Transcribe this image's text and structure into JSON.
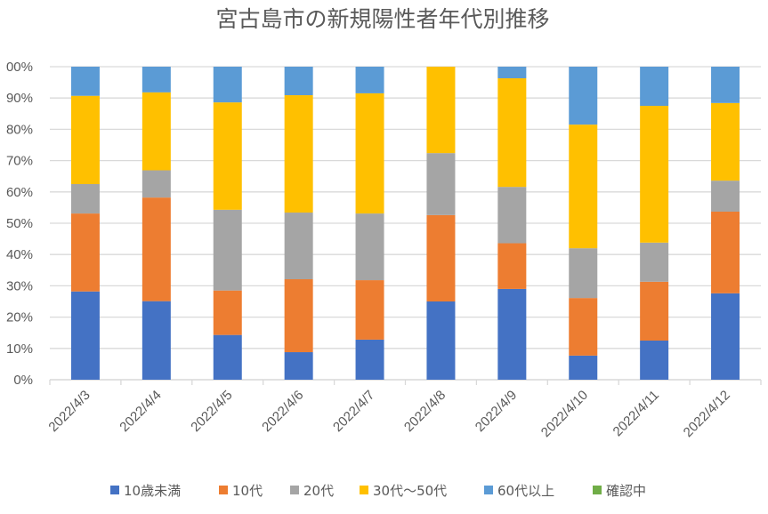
{
  "chart_data": {
    "type": "bar",
    "stacked": "percent",
    "title": "宮古島市の新規陽性者年代別推移",
    "xlabel": "",
    "ylabel": "",
    "ylim": [
      0,
      100
    ],
    "yticks": [
      "0%",
      "10%",
      "20%",
      "30%",
      "40%",
      "50%",
      "60%",
      "70%",
      "80%",
      "90%",
      "00%"
    ],
    "grid": true,
    "legend_position": "bottom",
    "categories": [
      "2022/4/3",
      "2022/4/4",
      "2022/4/5",
      "2022/4/6",
      "2022/4/7",
      "2022/4/8",
      "2022/4/9",
      "2022/4/10",
      "2022/4/11",
      "2022/4/12"
    ],
    "series": [
      {
        "name": "10歳未満",
        "color": "#4472C4",
        "values": [
          28.2,
          25.1,
          14.3,
          8.8,
          12.8,
          25.0,
          29.0,
          7.7,
          12.5,
          27.6
        ]
      },
      {
        "name": "10代",
        "color": "#ED7D31",
        "values": [
          24.9,
          33.1,
          14.2,
          23.3,
          19.0,
          27.6,
          14.6,
          18.4,
          18.8,
          26.1
        ]
      },
      {
        "name": "20代",
        "color": "#A5A5A5",
        "values": [
          9.4,
          8.7,
          25.8,
          21.3,
          21.3,
          19.8,
          18.0,
          15.9,
          12.5,
          9.9
        ]
      },
      {
        "name": "30代～50代",
        "color": "#FFC000",
        "values": [
          28.2,
          24.9,
          34.3,
          37.5,
          38.4,
          27.6,
          34.7,
          39.5,
          43.7,
          24.8
        ]
      },
      {
        "name": "60代以上",
        "color": "#5B9BD5",
        "values": [
          9.3,
          8.2,
          11.4,
          9.1,
          8.5,
          0.0,
          3.7,
          18.5,
          12.5,
          11.6
        ]
      },
      {
        "name": "確認中",
        "color": "#70AD47",
        "values": [
          0,
          0,
          0,
          0,
          0,
          0,
          0,
          0,
          0,
          0
        ]
      }
    ]
  }
}
